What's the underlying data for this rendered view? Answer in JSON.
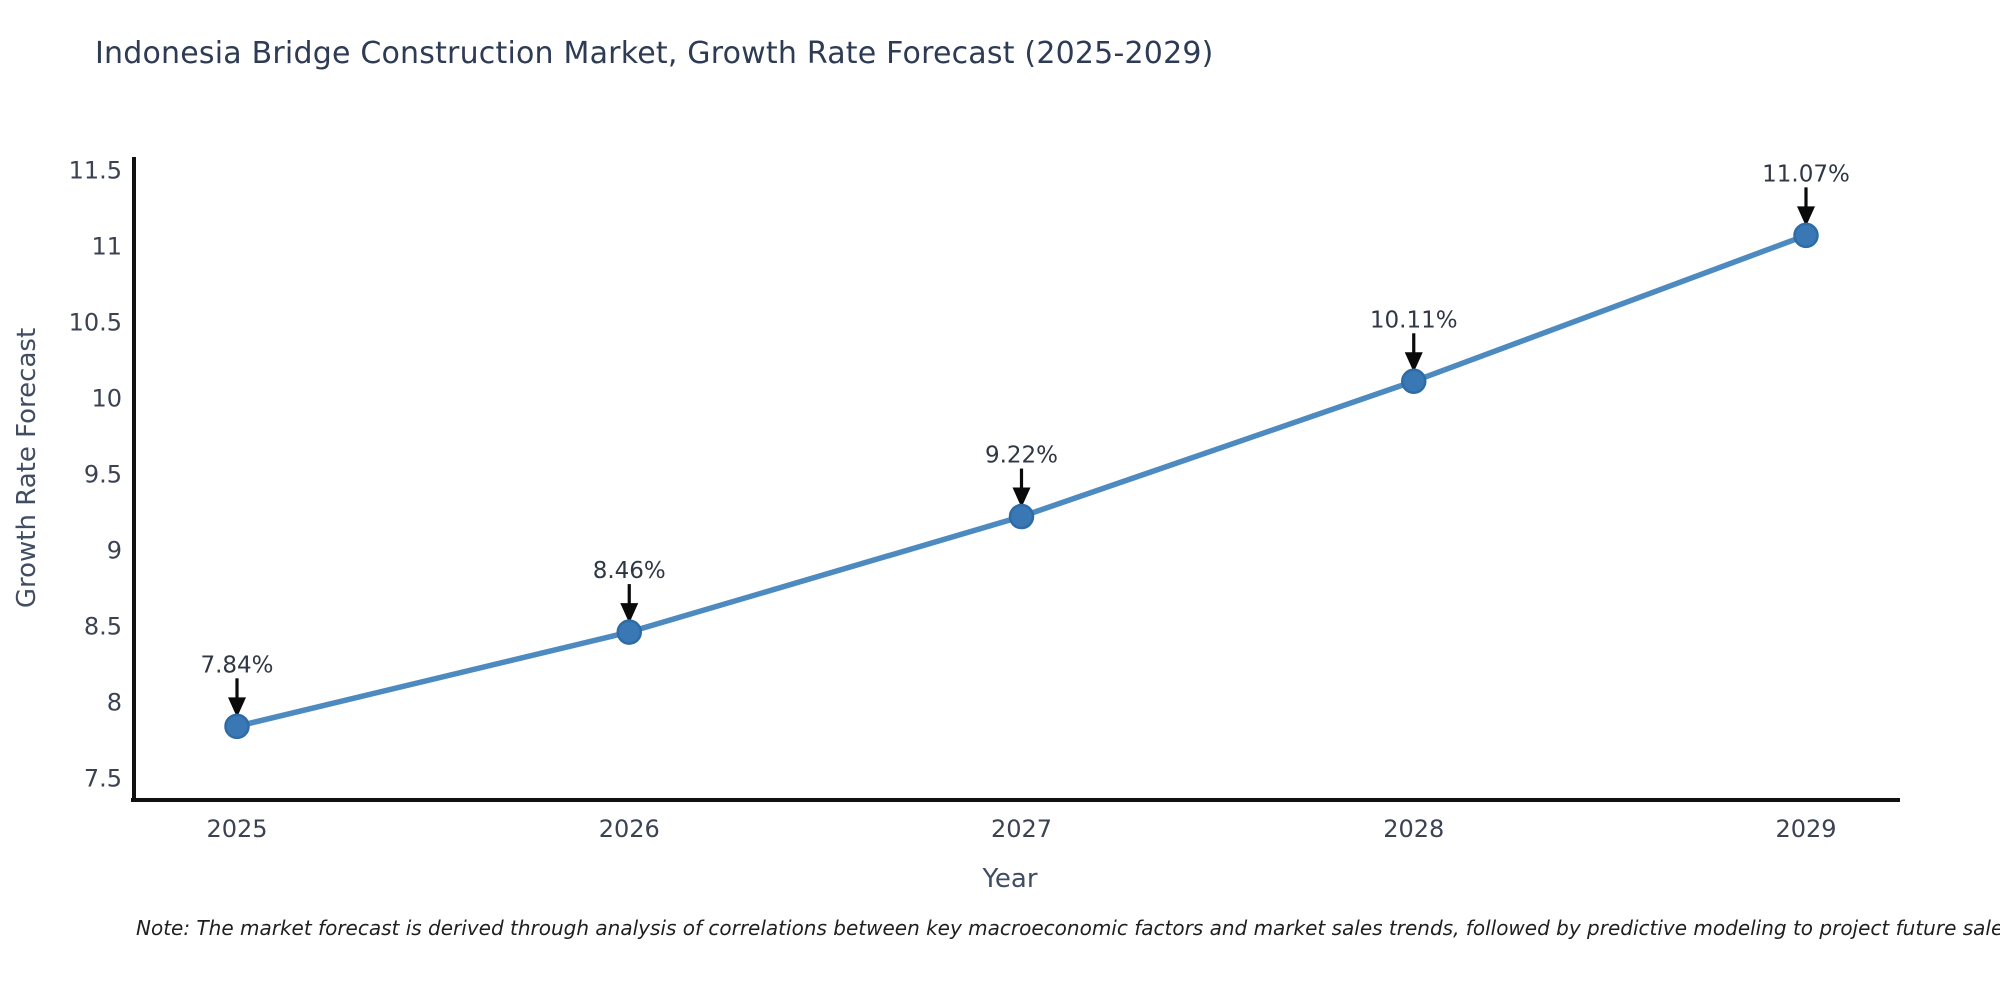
{
  "chart_data": {
    "type": "line",
    "title": "Indonesia Bridge Construction Market, Growth Rate Forecast (2025-2029)",
    "xlabel": "Year",
    "ylabel": "Growth Rate Forecast",
    "categories": [
      "2025",
      "2026",
      "2027",
      "2028",
      "2029"
    ],
    "series": [
      {
        "name": "Growth Rate Forecast",
        "values": [
          7.84,
          8.46,
          9.22,
          10.11,
          11.07
        ],
        "point_labels": [
          "7.84%",
          "8.46%",
          "9.22%",
          "10.11%",
          "11.07%"
        ]
      }
    ],
    "ylim": [
      7.35,
      11.58
    ],
    "yticks": [
      7.5,
      8,
      8.5,
      9,
      9.5,
      10,
      10.5,
      11,
      11.5
    ],
    "ytick_labels": [
      "7.5",
      "8",
      "8.5",
      "9",
      "9.5",
      "10",
      "10.5",
      "11",
      "11.5"
    ],
    "grid": false,
    "legend_position": "none",
    "annotations_have_arrows": true
  },
  "note": "Note: The market forecast is derived through analysis of correlations between key macroeconomic factors and market sales trends, followed by predictive modeling to project future sales performance.",
  "colors": {
    "title": "#2e3b55",
    "axis_label": "#414d63",
    "tick_label": "#3b4252",
    "annotation_text": "#2f3744",
    "spine": "#111111",
    "line": "#4d8ac0",
    "marker_fill": "#3a78b5",
    "marker_edge": "#2e6ca6",
    "arrow": "#0a0a0a",
    "background": "#ffffff"
  }
}
